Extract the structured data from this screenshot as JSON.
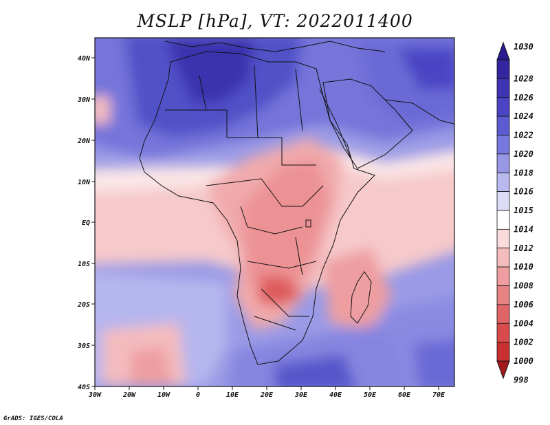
{
  "title": "MSLP [hPa], VT: 2022011400",
  "credit": "GrADS: IGES/COLA",
  "map": {
    "lon_range": [
      -30,
      75
    ],
    "lat_range": [
      -40,
      45
    ],
    "lon_ticks": [
      "30W",
      "20W",
      "10W",
      "0",
      "10E",
      "20E",
      "30E",
      "40E",
      "50E",
      "60E",
      "70E"
    ],
    "lat_ticks": [
      "40N",
      "30N",
      "20N",
      "10N",
      "EQ",
      "10S",
      "20S",
      "30S",
      "40S"
    ]
  },
  "colorbar": {
    "levels": [
      "1030",
      "1028",
      "1026",
      "1024",
      "1022",
      "1020",
      "1018",
      "1016",
      "1015",
      "1014",
      "1012",
      "1010",
      "1008",
      "1006",
      "1004",
      "1002",
      "1000",
      "998"
    ],
    "colors": [
      "#2a1c8f",
      "#33269e",
      "#3d33b3",
      "#4a44c4",
      "#5c5cd2",
      "#7777dd",
      "#9797e6",
      "#b9b9ef",
      "#dcdcf6",
      "#ffffff",
      "#fadadb",
      "#f4bcbd",
      "#ee9ea0",
      "#e78283",
      "#e16566",
      "#d84a4b",
      "#c83032",
      "#a41a1c"
    ]
  }
}
